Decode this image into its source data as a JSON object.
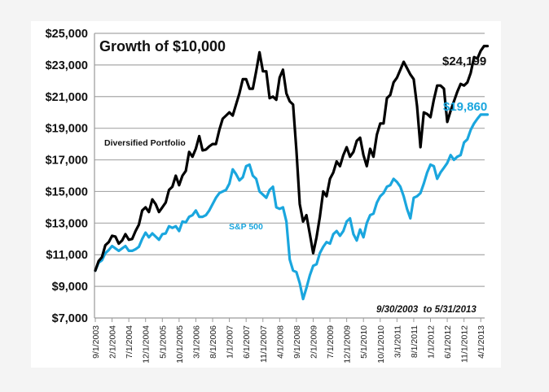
{
  "chart_data": {
    "type": "line",
    "title": "Growth of $10,000",
    "xlabel": "",
    "ylabel": "",
    "date_range_note": "9/30/2003  to 5/31/2013",
    "ylim": [
      7000,
      25000
    ],
    "y_ticks": [
      "$7,000",
      "$9,000",
      "$11,000",
      "$13,000",
      "$15,000",
      "$17,000",
      "$19,000",
      "$21,000",
      "$23,000",
      "$25,000"
    ],
    "y_tick_values": [
      7000,
      9000,
      11000,
      13000,
      15000,
      17000,
      19000,
      21000,
      23000,
      25000
    ],
    "x_ticks": [
      "9/1/2003",
      "2/1/2004",
      "7/1/2004",
      "12/1/2004",
      "5/1/2005",
      "10/1/2005",
      "3/1/2006",
      "8/1/2006",
      "1/1/2007",
      "6/1/2007",
      "11/1/2007",
      "4/1/2008",
      "9/1/2008",
      "2/1/2009",
      "7/1/2009",
      "12/1/2009",
      "5/1/2010",
      "10/1/2010",
      "3/1/2011",
      "8/1/2011",
      "1/1/2012",
      "6/1/2012",
      "11/1/2012",
      "4/1/2013"
    ],
    "x_start": "9/1/2003",
    "x_end": "5/1/2013",
    "x_unit": "month",
    "grid": "horizontal",
    "series": [
      {
        "name": "Diversified Portfolio",
        "color": "#000000",
        "end_label": "$24,199",
        "end_value": 24199,
        "keypoints": [
          [
            0,
            10000
          ],
          [
            1,
            10600
          ],
          [
            2,
            10850
          ],
          [
            3,
            11600
          ],
          [
            4,
            11800
          ],
          [
            5,
            12200
          ],
          [
            6,
            12150
          ],
          [
            7,
            11700
          ],
          [
            8,
            11900
          ],
          [
            9,
            12300
          ],
          [
            10,
            11950
          ],
          [
            11,
            12000
          ],
          [
            12,
            12500
          ],
          [
            13,
            12900
          ],
          [
            14,
            13800
          ],
          [
            15,
            14000
          ],
          [
            16,
            13700
          ],
          [
            17,
            14500
          ],
          [
            18,
            14200
          ],
          [
            19,
            13700
          ],
          [
            20,
            14000
          ],
          [
            21,
            14300
          ],
          [
            22,
            15100
          ],
          [
            23,
            15300
          ],
          [
            24,
            16000
          ],
          [
            25,
            15400
          ],
          [
            26,
            16000
          ],
          [
            27,
            16300
          ],
          [
            28,
            17500
          ],
          [
            29,
            17200
          ],
          [
            30,
            17700
          ],
          [
            31,
            18500
          ],
          [
            32,
            17600
          ],
          [
            33,
            17650
          ],
          [
            34,
            17850
          ],
          [
            35,
            18000
          ],
          [
            36,
            18000
          ],
          [
            37,
            18900
          ],
          [
            38,
            19600
          ],
          [
            39,
            19800
          ],
          [
            40,
            20000
          ],
          [
            41,
            19800
          ],
          [
            42,
            20500
          ],
          [
            43,
            21200
          ],
          [
            44,
            22100
          ],
          [
            45,
            22100
          ],
          [
            46,
            21500
          ],
          [
            47,
            21500
          ],
          [
            48,
            22600
          ],
          [
            49,
            23800
          ],
          [
            50,
            22600
          ],
          [
            51,
            22600
          ],
          [
            52,
            20900
          ],
          [
            53,
            21000
          ],
          [
            54,
            20800
          ],
          [
            55,
            22200
          ],
          [
            56,
            22700
          ],
          [
            57,
            21200
          ],
          [
            58,
            20700
          ],
          [
            59,
            20500
          ],
          [
            60,
            17600
          ],
          [
            61,
            14200
          ],
          [
            62,
            13100
          ],
          [
            63,
            13500
          ],
          [
            64,
            12300
          ],
          [
            65,
            11100
          ],
          [
            66,
            12100
          ],
          [
            67,
            13400
          ],
          [
            68,
            15000
          ],
          [
            69,
            14700
          ],
          [
            70,
            15800
          ],
          [
            71,
            16200
          ],
          [
            72,
            16900
          ],
          [
            73,
            16600
          ],
          [
            74,
            17300
          ],
          [
            75,
            17800
          ],
          [
            76,
            17200
          ],
          [
            77,
            17500
          ],
          [
            78,
            18200
          ],
          [
            79,
            18400
          ],
          [
            80,
            17300
          ],
          [
            81,
            16600
          ],
          [
            82,
            17700
          ],
          [
            83,
            17200
          ],
          [
            84,
            18600
          ],
          [
            85,
            19300
          ],
          [
            86,
            19300
          ],
          [
            87,
            20900
          ],
          [
            88,
            21100
          ],
          [
            89,
            21900
          ],
          [
            90,
            22200
          ],
          [
            91,
            22700
          ],
          [
            92,
            23200
          ],
          [
            93,
            22800
          ],
          [
            94,
            22400
          ],
          [
            95,
            22100
          ],
          [
            96,
            20400
          ],
          [
            97,
            17800
          ],
          [
            98,
            20000
          ],
          [
            99,
            19900
          ],
          [
            100,
            19700
          ],
          [
            101,
            20800
          ],
          [
            102,
            21700
          ],
          [
            103,
            21700
          ],
          [
            104,
            21500
          ],
          [
            105,
            19400
          ],
          [
            106,
            20100
          ],
          [
            107,
            20700
          ],
          [
            108,
            21300
          ],
          [
            109,
            21800
          ],
          [
            110,
            21700
          ],
          [
            111,
            21900
          ],
          [
            112,
            22500
          ],
          [
            113,
            23500
          ],
          [
            114,
            23400
          ],
          [
            115,
            23900
          ],
          [
            116,
            24199
          ],
          [
            117,
            24199
          ]
        ]
      },
      {
        "name": "S&P 500",
        "color": "#1aa6de",
        "end_label": "$19,860",
        "end_value": 19860,
        "keypoints": [
          [
            0,
            10000
          ],
          [
            1,
            10500
          ],
          [
            2,
            10650
          ],
          [
            3,
            11100
          ],
          [
            4,
            11300
          ],
          [
            5,
            11550
          ],
          [
            6,
            11400
          ],
          [
            7,
            11250
          ],
          [
            8,
            11400
          ],
          [
            9,
            11550
          ],
          [
            10,
            11250
          ],
          [
            11,
            11250
          ],
          [
            12,
            11350
          ],
          [
            13,
            11500
          ],
          [
            14,
            12000
          ],
          [
            15,
            12400
          ],
          [
            16,
            12100
          ],
          [
            17,
            12350
          ],
          [
            18,
            12150
          ],
          [
            19,
            11950
          ],
          [
            20,
            12300
          ],
          [
            21,
            12350
          ],
          [
            22,
            12800
          ],
          [
            23,
            12700
          ],
          [
            24,
            12800
          ],
          [
            25,
            12500
          ],
          [
            26,
            13100
          ],
          [
            27,
            13050
          ],
          [
            28,
            13400
          ],
          [
            29,
            13500
          ],
          [
            30,
            13800
          ],
          [
            31,
            13400
          ],
          [
            32,
            13400
          ],
          [
            33,
            13500
          ],
          [
            34,
            13800
          ],
          [
            35,
            14200
          ],
          [
            36,
            14600
          ],
          [
            37,
            14900
          ],
          [
            38,
            15000
          ],
          [
            39,
            15100
          ],
          [
            40,
            15500
          ],
          [
            41,
            16400
          ],
          [
            42,
            16100
          ],
          [
            43,
            15700
          ],
          [
            44,
            15900
          ],
          [
            45,
            16600
          ],
          [
            46,
            16700
          ],
          [
            47,
            16000
          ],
          [
            48,
            15800
          ],
          [
            49,
            15000
          ],
          [
            50,
            14800
          ],
          [
            51,
            14600
          ],
          [
            52,
            15100
          ],
          [
            53,
            15300
          ],
          [
            54,
            14000
          ],
          [
            55,
            13900
          ],
          [
            56,
            14000
          ],
          [
            57,
            13100
          ],
          [
            58,
            10700
          ],
          [
            59,
            10000
          ],
          [
            60,
            9900
          ],
          [
            61,
            9200
          ],
          [
            62,
            8200
          ],
          [
            63,
            8900
          ],
          [
            64,
            9700
          ],
          [
            65,
            10300
          ],
          [
            66,
            10400
          ],
          [
            67,
            11100
          ],
          [
            68,
            11500
          ],
          [
            69,
            11800
          ],
          [
            70,
            11700
          ],
          [
            71,
            12300
          ],
          [
            72,
            12500
          ],
          [
            73,
            12200
          ],
          [
            74,
            12500
          ],
          [
            75,
            13100
          ],
          [
            76,
            13300
          ],
          [
            77,
            12300
          ],
          [
            78,
            11900
          ],
          [
            79,
            12600
          ],
          [
            80,
            12100
          ],
          [
            81,
            13000
          ],
          [
            82,
            13500
          ],
          [
            83,
            13600
          ],
          [
            84,
            14300
          ],
          [
            85,
            14700
          ],
          [
            86,
            14900
          ],
          [
            87,
            15300
          ],
          [
            88,
            15400
          ],
          [
            89,
            15800
          ],
          [
            90,
            15600
          ],
          [
            91,
            15300
          ],
          [
            92,
            14700
          ],
          [
            93,
            13900
          ],
          [
            94,
            13300
          ],
          [
            95,
            14600
          ],
          [
            96,
            14700
          ],
          [
            97,
            14900
          ],
          [
            98,
            15500
          ],
          [
            99,
            16200
          ],
          [
            100,
            16700
          ],
          [
            101,
            16600
          ],
          [
            102,
            15800
          ],
          [
            103,
            16200
          ],
          [
            104,
            16500
          ],
          [
            105,
            16800
          ],
          [
            106,
            17300
          ],
          [
            107,
            17000
          ],
          [
            108,
            17200
          ],
          [
            109,
            17300
          ],
          [
            110,
            18100
          ],
          [
            111,
            18300
          ],
          [
            112,
            18900
          ],
          [
            113,
            19300
          ],
          [
            114,
            19600
          ],
          [
            115,
            19860
          ],
          [
            116,
            19860
          ],
          [
            117,
            19860
          ]
        ]
      }
    ]
  }
}
